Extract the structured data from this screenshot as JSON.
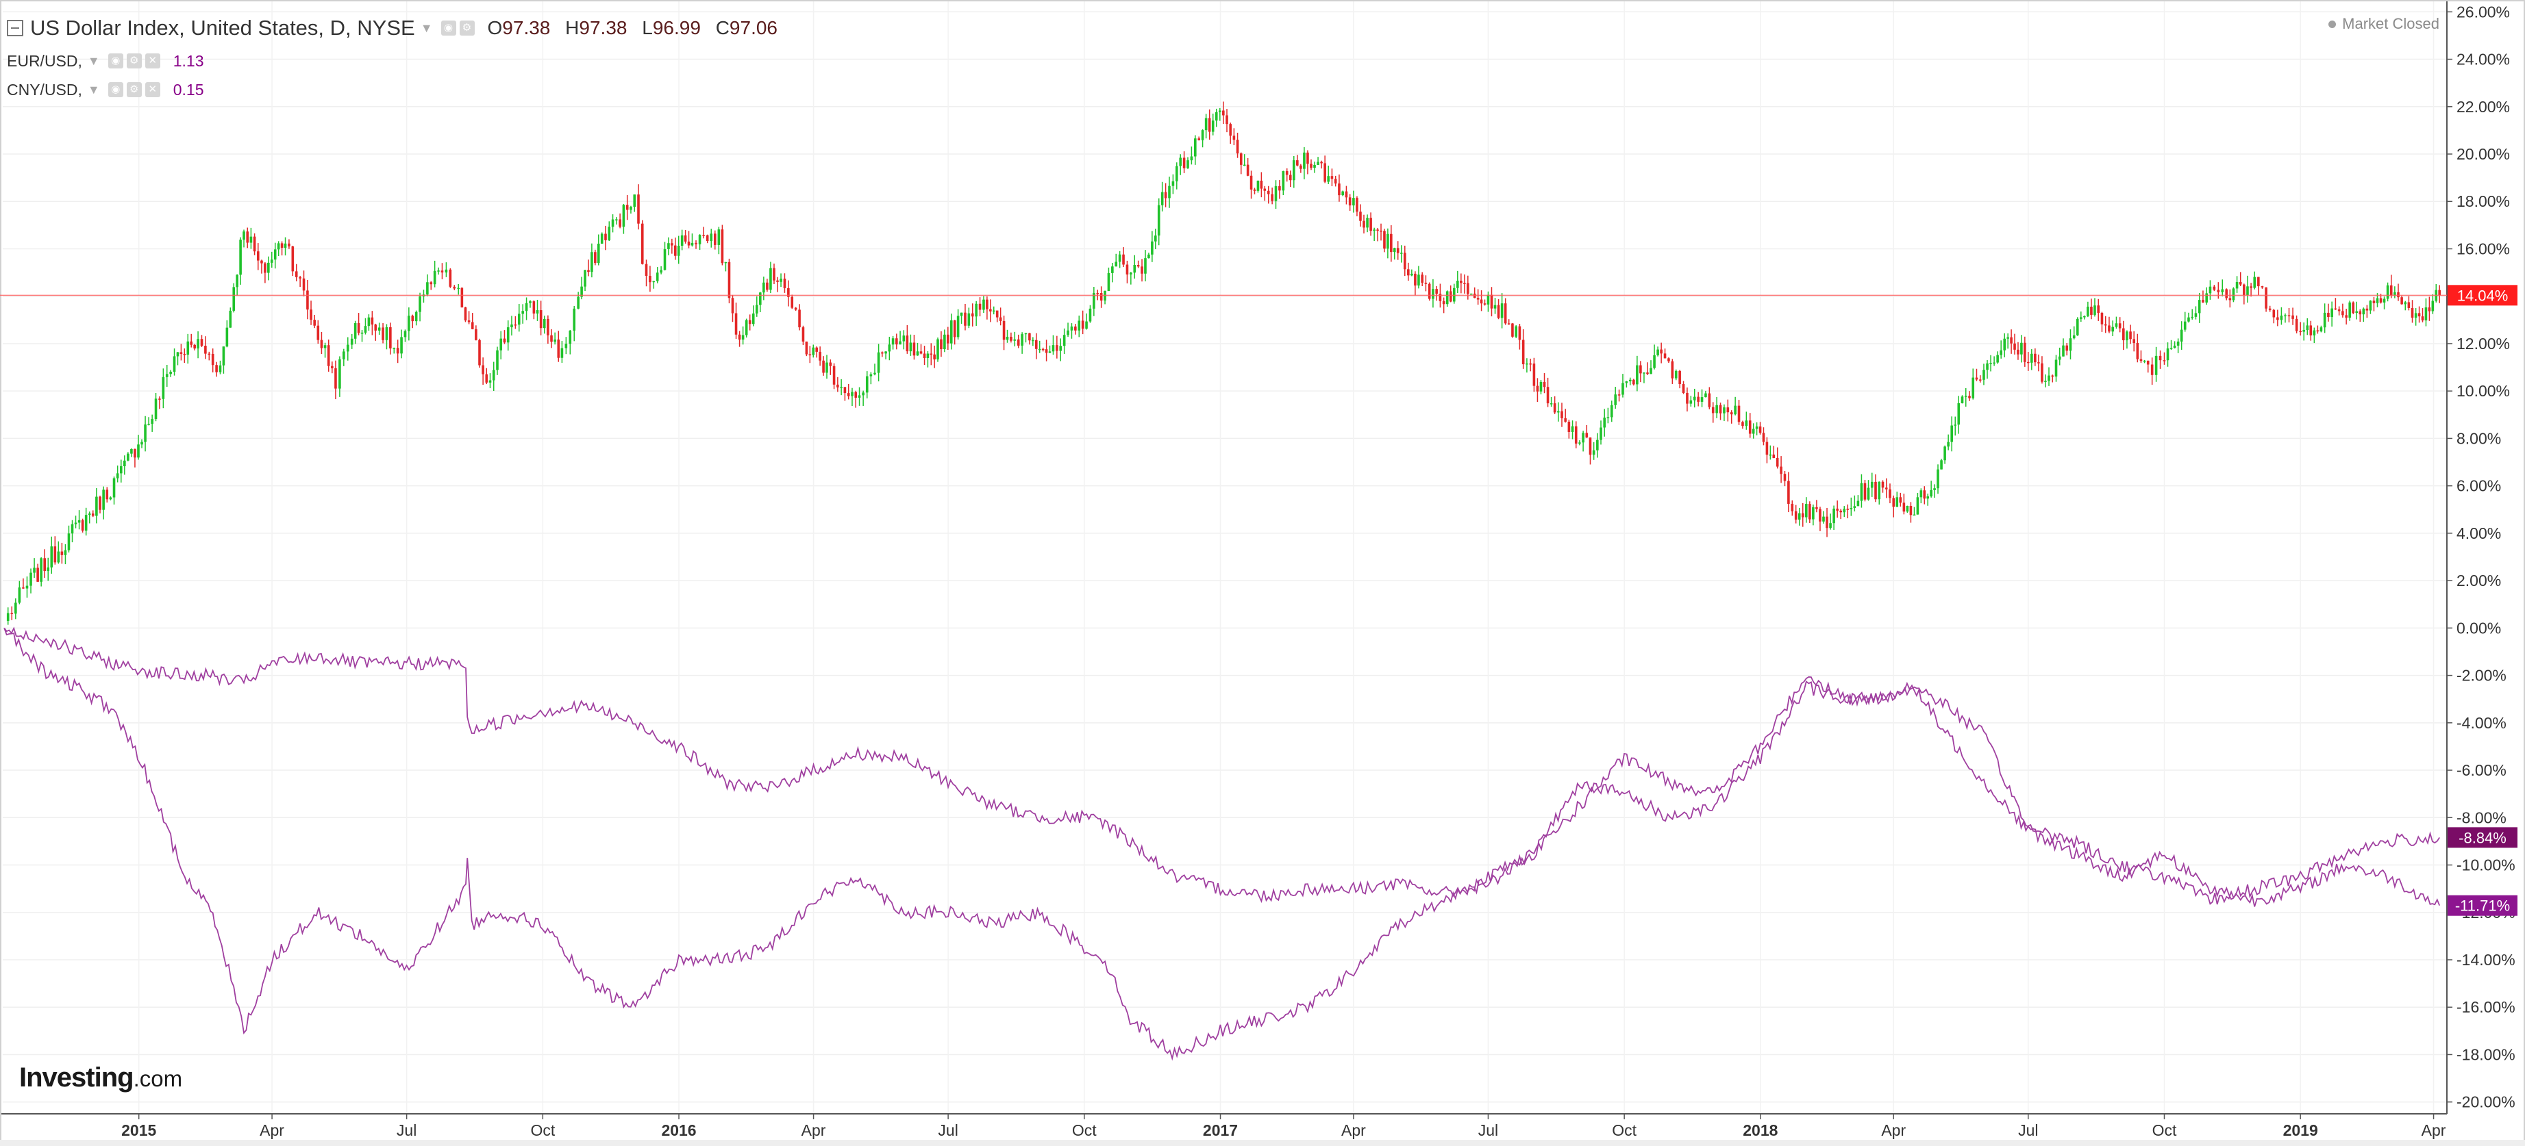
{
  "header": {
    "main_title": "US Dollar Index, United States, D, NYSE",
    "open_label": "O",
    "open_value": "97.38",
    "high_label": "H",
    "high_value": "97.38",
    "low_label": "L",
    "low_value": "96.99",
    "close_label": "C",
    "close_value": "97.06",
    "overlays": [
      {
        "label": "EUR/USD,",
        "value": "1.13"
      },
      {
        "label": "CNY/USD,",
        "value": "0.15"
      }
    ]
  },
  "status": {
    "text": "Market Closed"
  },
  "brand": {
    "logo": "Investing",
    "logo_suffix": ".com"
  },
  "colors": {
    "up": "#1fc22b",
    "down": "#e32626",
    "overlay": "#a040a0",
    "price_line": "#ff5b5b",
    "badge_red": "#ff1d1d",
    "badge_purple_dark": "#7a0c66",
    "badge_purple": "#8d1590"
  },
  "chart_data": {
    "type": "line",
    "title": "US Dollar Index, United States, D, NYSE",
    "xlabel": "",
    "ylabel": "",
    "y_unit": "percent change",
    "ylim": [
      -20.5,
      26.5
    ],
    "y_ticks": [
      26,
      24,
      22,
      20,
      18,
      16,
      14,
      12,
      10,
      8,
      6,
      4,
      2,
      0,
      -2,
      -4,
      -6,
      -8,
      -10,
      -12,
      -14,
      -16,
      -18,
      -20
    ],
    "y_tick_labels": [
      "26.00%",
      "24.00%",
      "22.00%",
      "20.00%",
      "18.00%",
      "16.00%",
      "14.00%",
      "12.00%",
      "10.00%",
      "8.00%",
      "6.00%",
      "4.00%",
      "2.00%",
      "0.00%",
      "-2.00%",
      "-4.00%",
      "-6.00%",
      "-8.00%",
      "-10.00%",
      "-12.00%",
      "-14.00%",
      "-16.00%",
      "-18.00%",
      "-20.00%"
    ],
    "x_range": [
      "2014-10-01",
      "2019-04-10"
    ],
    "x_ticks": [
      {
        "date": "2015-01-01",
        "label": "2015",
        "bold": true
      },
      {
        "date": "2015-04-01",
        "label": "Apr",
        "bold": false
      },
      {
        "date": "2015-07-01",
        "label": "Jul",
        "bold": false
      },
      {
        "date": "2015-10-01",
        "label": "Oct",
        "bold": false
      },
      {
        "date": "2016-01-01",
        "label": "2016",
        "bold": true
      },
      {
        "date": "2016-04-01",
        "label": "Apr",
        "bold": false
      },
      {
        "date": "2016-07-01",
        "label": "Jul",
        "bold": false
      },
      {
        "date": "2016-10-01",
        "label": "Oct",
        "bold": false
      },
      {
        "date": "2017-01-01",
        "label": "2017",
        "bold": true
      },
      {
        "date": "2017-04-01",
        "label": "Apr",
        "bold": false
      },
      {
        "date": "2017-07-01",
        "label": "Jul",
        "bold": false
      },
      {
        "date": "2017-10-01",
        "label": "Oct",
        "bold": false
      },
      {
        "date": "2018-01-01",
        "label": "2018",
        "bold": true
      },
      {
        "date": "2018-04-01",
        "label": "Apr",
        "bold": false
      },
      {
        "date": "2018-07-01",
        "label": "Jul",
        "bold": false
      },
      {
        "date": "2018-10-01",
        "label": "Oct",
        "bold": false
      },
      {
        "date": "2019-01-01",
        "label": "2019",
        "bold": true
      },
      {
        "date": "2019-04-01",
        "label": "Apr",
        "bold": false
      }
    ],
    "grid": true,
    "series": [
      {
        "name": "US Dollar Index, United States, D, NYSE",
        "style": "candlestick",
        "x": [
          "2014-10-02",
          "2014-10-20",
          "2014-11-10",
          "2014-12-01",
          "2014-12-20",
          "2015-01-10",
          "2015-01-25",
          "2015-02-10",
          "2015-02-25",
          "2015-03-13",
          "2015-03-25",
          "2015-04-10",
          "2015-04-25",
          "2015-05-14",
          "2015-05-25",
          "2015-06-10",
          "2015-06-25",
          "2015-07-10",
          "2015-07-25",
          "2015-08-05",
          "2015-08-24",
          "2015-09-10",
          "2015-09-25",
          "2015-10-14",
          "2015-10-25",
          "2015-11-10",
          "2015-12-02",
          "2015-12-10",
          "2015-12-25",
          "2016-01-10",
          "2016-01-28",
          "2016-02-11",
          "2016-02-25",
          "2016-03-10",
          "2016-03-25",
          "2016-04-10",
          "2016-05-02",
          "2016-05-15",
          "2016-06-01",
          "2016-06-15",
          "2016-06-24",
          "2016-07-10",
          "2016-07-25",
          "2016-08-10",
          "2016-08-25",
          "2016-09-10",
          "2016-09-25",
          "2016-10-10",
          "2016-10-25",
          "2016-11-09",
          "2016-11-25",
          "2016-12-10",
          "2016-12-20",
          "2017-01-03",
          "2017-01-15",
          "2017-01-31",
          "2017-02-15",
          "2017-03-01",
          "2017-03-15",
          "2017-04-01",
          "2017-04-15",
          "2017-05-01",
          "2017-05-15",
          "2017-06-01",
          "2017-06-15",
          "2017-07-01",
          "2017-07-15",
          "2017-08-01",
          "2017-08-15",
          "2017-09-08",
          "2017-09-20",
          "2017-10-05",
          "2017-10-26",
          "2017-11-10",
          "2017-11-25",
          "2017-12-10",
          "2017-12-25",
          "2018-01-10",
          "2018-01-25",
          "2018-02-15",
          "2018-03-01",
          "2018-03-15",
          "2018-04-01",
          "2018-04-15",
          "2018-05-01",
          "2018-05-15",
          "2018-06-01",
          "2018-06-15",
          "2018-07-01",
          "2018-07-15",
          "2018-08-01",
          "2018-08-15",
          "2018-09-01",
          "2018-09-20",
          "2018-10-01",
          "2018-10-15",
          "2018-11-01",
          "2018-11-12",
          "2018-12-01",
          "2018-12-14",
          "2019-01-01",
          "2019-01-15",
          "2019-02-01",
          "2019-02-15",
          "2019-03-01",
          "2019-03-20",
          "2019-04-05"
        ],
        "values": [
          0.3,
          2.0,
          3.5,
          5.0,
          6.5,
          9.0,
          11.5,
          12.0,
          11.0,
          17.0,
          15.0,
          16.5,
          13.5,
          10.5,
          12.5,
          13.0,
          11.5,
          14.0,
          15.0,
          14.0,
          10.5,
          13.0,
          13.5,
          11.5,
          14.0,
          16.5,
          18.0,
          14.5,
          16.0,
          16.5,
          16.5,
          12.0,
          14.5,
          15.0,
          12.0,
          11.0,
          9.5,
          11.5,
          12.0,
          11.0,
          12.0,
          13.0,
          14.0,
          12.0,
          12.5,
          11.5,
          12.5,
          14.0,
          15.5,
          15.0,
          18.5,
          20.0,
          21.0,
          21.5,
          19.5,
          18.0,
          19.0,
          20.0,
          19.0,
          18.0,
          16.5,
          16.0,
          14.5,
          14.0,
          14.5,
          14.0,
          13.0,
          10.5,
          9.0,
          7.5,
          9.0,
          10.5,
          11.5,
          10.0,
          9.5,
          9.5,
          8.5,
          7.0,
          5.0,
          4.5,
          5.0,
          6.0,
          5.5,
          5.0,
          6.5,
          9.5,
          11.0,
          12.0,
          11.5,
          10.5,
          12.5,
          13.5,
          12.5,
          11.0,
          11.5,
          13.0,
          14.5,
          14.0,
          14.5,
          13.5,
          12.5,
          13.0,
          13.5,
          13.5,
          14.5,
          13.0,
          14.04
        ]
      },
      {
        "name": "EUR/USD",
        "style": "line",
        "x": [
          "2014-10-02",
          "2014-10-15",
          "2014-11-01",
          "2014-11-20",
          "2014-12-15",
          "2015-01-05",
          "2015-02-01",
          "2015-02-20",
          "2015-03-01",
          "2015-03-13",
          "2015-04-01",
          "2015-05-01",
          "2015-06-01",
          "2015-07-01",
          "2015-08-10",
          "2015-08-11",
          "2015-08-14",
          "2015-09-01",
          "2015-10-01",
          "2015-11-01",
          "2015-12-01",
          "2016-01-01",
          "2016-02-01",
          "2016-03-01",
          "2016-04-01",
          "2016-05-01",
          "2016-06-01",
          "2016-07-01",
          "2016-08-01",
          "2016-09-01",
          "2016-10-01",
          "2016-10-15",
          "2016-11-01",
          "2016-12-01",
          "2017-01-01",
          "2017-02-01",
          "2017-03-01",
          "2017-04-01",
          "2017-05-01",
          "2017-06-01",
          "2017-07-01",
          "2017-08-01",
          "2017-09-01",
          "2017-10-01",
          "2017-11-01",
          "2017-12-01",
          "2018-01-01",
          "2018-02-01",
          "2018-03-01",
          "2018-03-20",
          "2018-04-15",
          "2018-05-01",
          "2018-06-01",
          "2018-07-01",
          "2018-08-01",
          "2018-09-01",
          "2018-10-01",
          "2018-11-01",
          "2018-12-01",
          "2019-01-01",
          "2019-02-01",
          "2019-03-01",
          "2019-04-05"
        ],
        "values": [
          0.0,
          -0.3,
          -0.5,
          -1.0,
          -1.5,
          -1.8,
          -2.0,
          -2.0,
          -2.2,
          -2.3,
          -1.5,
          -1.2,
          -1.5,
          -1.5,
          -1.5,
          -4.0,
          -4.3,
          -4.0,
          -3.5,
          -3.3,
          -4.0,
          -5.0,
          -6.5,
          -6.8,
          -6.0,
          -5.3,
          -5.5,
          -6.5,
          -7.5,
          -8.0,
          -8.0,
          -8.2,
          -9.0,
          -10.5,
          -11.0,
          -11.3,
          -11.0,
          -11.0,
          -10.8,
          -11.2,
          -10.8,
          -9.5,
          -7.5,
          -5.5,
          -6.5,
          -7.0,
          -5.0,
          -2.0,
          -3.0,
          -3.0,
          -2.5,
          -4.0,
          -6.5,
          -8.5,
          -9.0,
          -10.0,
          -10.5,
          -11.5,
          -11.0,
          -10.5,
          -9.5,
          -9.0,
          -8.84
        ]
      },
      {
        "name": "CNY/USD",
        "style": "line",
        "x": [
          "2014-10-02",
          "2014-10-15",
          "2014-11-01",
          "2014-11-20",
          "2014-12-15",
          "2015-01-05",
          "2015-02-01",
          "2015-02-20",
          "2015-03-01",
          "2015-03-13",
          "2015-04-01",
          "2015-05-01",
          "2015-06-01",
          "2015-07-01",
          "2015-08-10",
          "2015-08-11",
          "2015-08-14",
          "2015-09-01",
          "2015-10-01",
          "2015-11-01",
          "2015-12-01",
          "2016-01-01",
          "2016-02-01",
          "2016-03-01",
          "2016-04-01",
          "2016-05-01",
          "2016-06-01",
          "2016-07-01",
          "2016-08-01",
          "2016-09-01",
          "2016-10-01",
          "2016-10-15",
          "2016-11-01",
          "2016-12-01",
          "2017-01-01",
          "2017-02-01",
          "2017-03-01",
          "2017-04-01",
          "2017-05-01",
          "2017-06-01",
          "2017-07-01",
          "2017-08-01",
          "2017-09-01",
          "2017-10-01",
          "2017-11-01",
          "2017-12-01",
          "2018-01-01",
          "2018-02-01",
          "2018-03-01",
          "2018-03-20",
          "2018-04-15",
          "2018-05-01",
          "2018-06-01",
          "2018-07-01",
          "2018-08-01",
          "2018-09-01",
          "2018-10-01",
          "2018-11-01",
          "2018-12-01",
          "2019-01-01",
          "2019-02-01",
          "2019-03-01",
          "2019-04-05"
        ],
        "values": [
          0.0,
          -1.0,
          -2.0,
          -2.5,
          -3.5,
          -6.0,
          -10.5,
          -12.0,
          -14.0,
          -17.0,
          -14.0,
          -12.0,
          -13.0,
          -14.5,
          -11.0,
          -9.5,
          -12.5,
          -12.0,
          -12.5,
          -15.0,
          -16.0,
          -14.0,
          -14.0,
          -13.5,
          -11.5,
          -10.5,
          -12.0,
          -12.0,
          -12.5,
          -12.0,
          -13.5,
          -14.0,
          -16.5,
          -18.0,
          -17.0,
          -16.5,
          -16.0,
          -14.5,
          -12.5,
          -11.5,
          -10.5,
          -9.5,
          -6.5,
          -7.0,
          -8.0,
          -7.5,
          -5.5,
          -2.5,
          -3.0,
          -3.0,
          -2.5,
          -3.0,
          -4.5,
          -8.5,
          -9.5,
          -10.5,
          -9.5,
          -11.0,
          -11.5,
          -11.0,
          -10.0,
          -10.5,
          -11.71
        ]
      }
    ],
    "last_value_labels": [
      {
        "series": "US Dollar Index, United States, D, NYSE",
        "value": 14.04,
        "text": "14.04%"
      },
      {
        "series": "EUR/USD",
        "value": -8.84,
        "text": "-8.84%"
      },
      {
        "series": "CNY/USD",
        "value": -11.71,
        "text": "-11.71%"
      }
    ]
  }
}
